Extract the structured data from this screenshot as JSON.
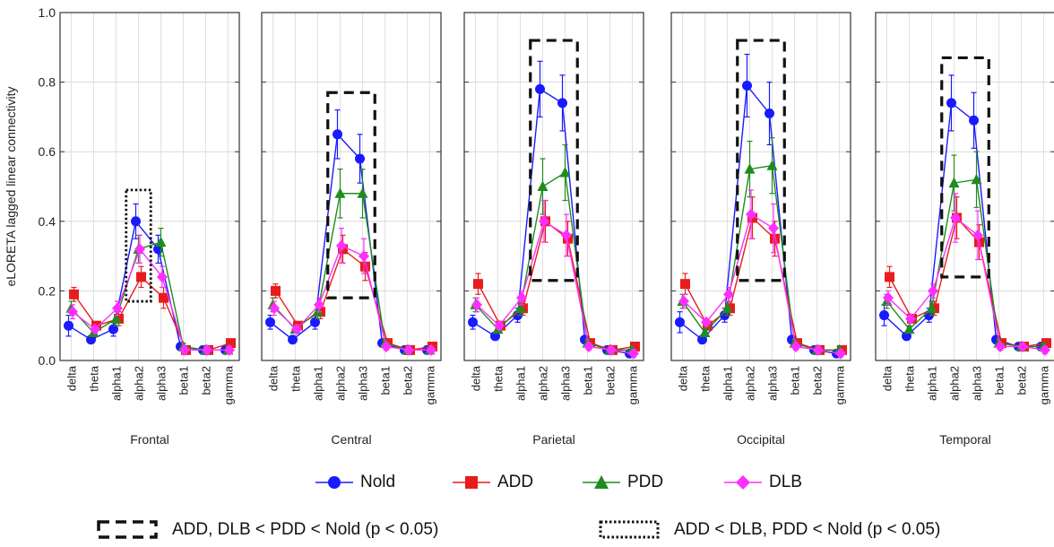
{
  "chart_data": {
    "type": "line",
    "ylabel": "eLORETA lagged linear connectivity",
    "ylim": [
      0,
      1.0
    ],
    "yticks": [
      "0.0",
      "0.2",
      "0.4",
      "0.6",
      "0.8",
      "1.0"
    ],
    "grid": true,
    "categories": [
      "delta",
      "theta",
      "alpha1",
      "alpha2",
      "alpha3",
      "beta1",
      "beta2",
      "gamma"
    ],
    "legend": [
      {
        "name": "Nold",
        "color": "#1a1aff",
        "marker": "circle"
      },
      {
        "name": "ADD",
        "color": "#e81c1c",
        "marker": "square"
      },
      {
        "name": "PDD",
        "color": "#1f8c1f",
        "marker": "triangle"
      },
      {
        "name": "DLB",
        "color": "#ff2eff",
        "marker": "diamond"
      }
    ],
    "annotations": {
      "dashed": "ADD, DLB < PDD < Nold (p < 0.05)",
      "dotted": "ADD < DLB, PDD < Nold (p < 0.05)"
    },
    "panels": [
      {
        "title": "Frontal",
        "box": {
          "style": "dotted",
          "from": "alpha2",
          "to": "alpha2",
          "y": [
            0.17,
            0.49
          ]
        },
        "series": [
          {
            "name": "Nold",
            "values": [
              0.1,
              0.06,
              0.09,
              0.4,
              0.32,
              0.04,
              0.03,
              0.03
            ],
            "err": [
              0.03,
              0.01,
              0.02,
              0.05,
              0.04,
              0.01,
              0.01,
              0.01
            ]
          },
          {
            "name": "ADD",
            "values": [
              0.19,
              0.1,
              0.12,
              0.24,
              0.18,
              0.03,
              0.03,
              0.05
            ],
            "err": [
              0.02,
              0.01,
              0.02,
              0.03,
              0.03,
              0.01,
              0.01,
              0.01
            ]
          },
          {
            "name": "PDD",
            "values": [
              0.15,
              0.08,
              0.12,
              0.32,
              0.34,
              0.04,
              0.03,
              0.03
            ],
            "err": [
              0.02,
              0.01,
              0.02,
              0.04,
              0.04,
              0.01,
              0.01,
              0.01
            ]
          },
          {
            "name": "DLB",
            "values": [
              0.14,
              0.09,
              0.15,
              0.32,
              0.24,
              0.03,
              0.03,
              0.03
            ],
            "err": [
              0.02,
              0.01,
              0.02,
              0.04,
              0.03,
              0.01,
              0.01,
              0.01
            ]
          }
        ]
      },
      {
        "title": "Central",
        "box": {
          "style": "dashed",
          "from": "alpha2",
          "to": "alpha3",
          "y": [
            0.18,
            0.77
          ]
        },
        "series": [
          {
            "name": "Nold",
            "values": [
              0.11,
              0.06,
              0.11,
              0.65,
              0.58,
              0.05,
              0.03,
              0.03
            ],
            "err": [
              0.02,
              0.01,
              0.02,
              0.07,
              0.07,
              0.01,
              0.01,
              0.01
            ]
          },
          {
            "name": "ADD",
            "values": [
              0.2,
              0.1,
              0.14,
              0.32,
              0.27,
              0.05,
              0.03,
              0.04
            ],
            "err": [
              0.02,
              0.01,
              0.02,
              0.04,
              0.04,
              0.01,
              0.01,
              0.01
            ]
          },
          {
            "name": "PDD",
            "values": [
              0.16,
              0.09,
              0.14,
              0.48,
              0.48,
              0.05,
              0.03,
              0.03
            ],
            "err": [
              0.02,
              0.01,
              0.02,
              0.07,
              0.07,
              0.01,
              0.01,
              0.01
            ]
          },
          {
            "name": "DLB",
            "values": [
              0.15,
              0.09,
              0.16,
              0.33,
              0.3,
              0.04,
              0.03,
              0.03
            ],
            "err": [
              0.02,
              0.01,
              0.02,
              0.05,
              0.05,
              0.01,
              0.01,
              0.01
            ]
          }
        ]
      },
      {
        "title": "Parietal",
        "box": {
          "style": "dashed",
          "from": "alpha2",
          "to": "alpha3",
          "y": [
            0.23,
            0.92
          ]
        },
        "series": [
          {
            "name": "Nold",
            "values": [
              0.11,
              0.07,
              0.13,
              0.78,
              0.74,
              0.06,
              0.03,
              0.02
            ],
            "err": [
              0.02,
              0.01,
              0.02,
              0.08,
              0.08,
              0.01,
              0.01,
              0.01
            ]
          },
          {
            "name": "ADD",
            "values": [
              0.22,
              0.1,
              0.15,
              0.4,
              0.35,
              0.05,
              0.03,
              0.04
            ],
            "err": [
              0.03,
              0.01,
              0.02,
              0.06,
              0.05,
              0.01,
              0.01,
              0.01
            ]
          },
          {
            "name": "PDD",
            "values": [
              0.16,
              0.09,
              0.15,
              0.5,
              0.54,
              0.05,
              0.03,
              0.03
            ],
            "err": [
              0.02,
              0.01,
              0.02,
              0.08,
              0.08,
              0.01,
              0.01,
              0.01
            ]
          },
          {
            "name": "DLB",
            "values": [
              0.16,
              0.1,
              0.18,
              0.4,
              0.36,
              0.04,
              0.03,
              0.02
            ],
            "err": [
              0.02,
              0.01,
              0.02,
              0.06,
              0.06,
              0.01,
              0.01,
              0.01
            ]
          }
        ]
      },
      {
        "title": "Occipital",
        "box": {
          "style": "dashed",
          "from": "alpha2",
          "to": "alpha3",
          "y": [
            0.23,
            0.92
          ]
        },
        "series": [
          {
            "name": "Nold",
            "values": [
              0.11,
              0.06,
              0.13,
              0.79,
              0.71,
              0.06,
              0.03,
              0.02
            ],
            "err": [
              0.03,
              0.01,
              0.02,
              0.09,
              0.09,
              0.01,
              0.01,
              0.01
            ]
          },
          {
            "name": "ADD",
            "values": [
              0.22,
              0.1,
              0.15,
              0.41,
              0.35,
              0.05,
              0.03,
              0.03
            ],
            "err": [
              0.03,
              0.01,
              0.02,
              0.06,
              0.05,
              0.01,
              0.01,
              0.01
            ]
          },
          {
            "name": "PDD",
            "values": [
              0.17,
              0.08,
              0.15,
              0.55,
              0.56,
              0.05,
              0.03,
              0.03
            ],
            "err": [
              0.02,
              0.01,
              0.02,
              0.08,
              0.08,
              0.01,
              0.01,
              0.01
            ]
          },
          {
            "name": "DLB",
            "values": [
              0.17,
              0.11,
              0.19,
              0.42,
              0.38,
              0.04,
              0.03,
              0.02
            ],
            "err": [
              0.02,
              0.01,
              0.02,
              0.07,
              0.07,
              0.01,
              0.01,
              0.01
            ]
          }
        ]
      },
      {
        "title": "Temporal",
        "box": {
          "style": "dashed",
          "from": "alpha2",
          "to": "alpha3",
          "y": [
            0.24,
            0.87
          ]
        },
        "series": [
          {
            "name": "Nold",
            "values": [
              0.13,
              0.07,
              0.13,
              0.74,
              0.69,
              0.06,
              0.04,
              0.04
            ],
            "err": [
              0.03,
              0.01,
              0.02,
              0.08,
              0.08,
              0.01,
              0.01,
              0.01
            ]
          },
          {
            "name": "ADD",
            "values": [
              0.24,
              0.12,
              0.15,
              0.41,
              0.34,
              0.05,
              0.04,
              0.05
            ],
            "err": [
              0.03,
              0.01,
              0.02,
              0.06,
              0.05,
              0.01,
              0.01,
              0.01
            ]
          },
          {
            "name": "PDD",
            "values": [
              0.17,
              0.09,
              0.15,
              0.51,
              0.52,
              0.05,
              0.04,
              0.04
            ],
            "err": [
              0.02,
              0.01,
              0.02,
              0.08,
              0.08,
              0.01,
              0.01,
              0.01
            ]
          },
          {
            "name": "DLB",
            "values": [
              0.18,
              0.12,
              0.2,
              0.41,
              0.36,
              0.04,
              0.04,
              0.03
            ],
            "err": [
              0.02,
              0.01,
              0.02,
              0.07,
              0.07,
              0.01,
              0.01,
              0.01
            ]
          }
        ]
      }
    ]
  }
}
